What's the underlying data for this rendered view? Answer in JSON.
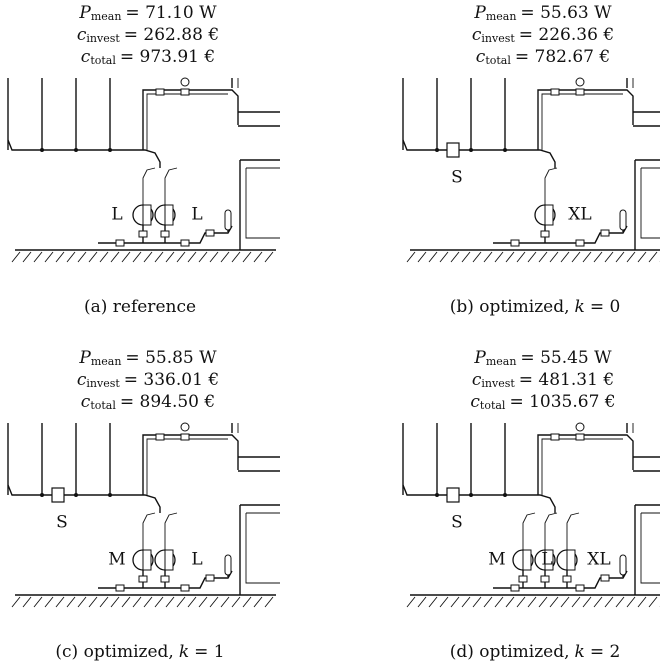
{
  "panels": [
    {
      "metrics": [
        {
          "symbol": "P",
          "sub": "mean",
          "text": "= 71.10 W"
        },
        {
          "symbol": "c",
          "sub": "invest",
          "text": "= 262.88 €"
        },
        {
          "symbol": "c",
          "sub": "total",
          "text": "= 973.91 €"
        }
      ],
      "pumps": [
        "L",
        "L"
      ],
      "caption": "(a) reference"
    },
    {
      "metrics": [
        {
          "symbol": "P",
          "sub": "mean",
          "text": "= 55.63 W"
        },
        {
          "symbol": "c",
          "sub": "invest",
          "text": "= 226.36 €"
        },
        {
          "symbol": "c",
          "sub": "total",
          "text": "= 782.67 €"
        }
      ],
      "bypass": "S",
      "pumps": [
        "XL"
      ],
      "caption": "(b) optimized,",
      "caption_var": "k",
      "caption_rest": "= 0"
    },
    {
      "metrics": [
        {
          "symbol": "P",
          "sub": "mean",
          "text": "= 55.85 W"
        },
        {
          "symbol": "c",
          "sub": "invest",
          "text": "= 336.01 €"
        },
        {
          "symbol": "c",
          "sub": "total",
          "text": "= 894.50 €"
        }
      ],
      "bypass": "S",
      "pumps": [
        "M",
        "L"
      ],
      "caption": "(c) optimized,",
      "caption_var": "k",
      "caption_rest": "= 1"
    },
    {
      "metrics": [
        {
          "symbol": "P",
          "sub": "mean",
          "text": "= 55.45 W"
        },
        {
          "symbol": "c",
          "sub": "invest",
          "text": "= 481.31 €"
        },
        {
          "symbol": "c",
          "sub": "total",
          "text": "= 1035.67 €"
        }
      ],
      "bypass": "S",
      "pumps": [
        "M",
        "L",
        "XL"
      ],
      "caption": "(d) optimized,",
      "caption_var": "k",
      "caption_rest": "= 2"
    }
  ]
}
